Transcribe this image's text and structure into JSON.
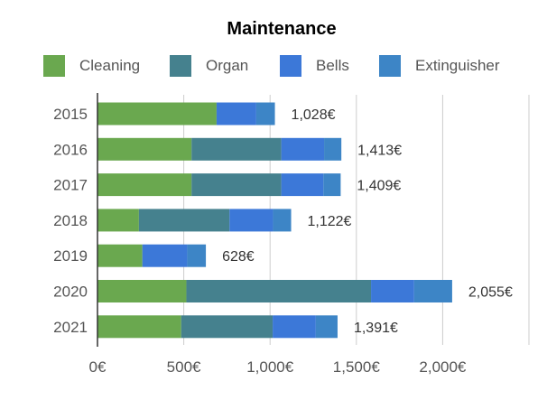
{
  "chart_data": {
    "type": "bar",
    "orientation": "horizontal",
    "stacked": true,
    "title": "Maintenance",
    "categories": [
      "2015",
      "2016",
      "2017",
      "2018",
      "2019",
      "2020",
      "2021"
    ],
    "series": [
      {
        "name": "Cleaning",
        "color": "#6aa84f",
        "values": [
          690,
          545,
          545,
          240,
          260,
          515,
          485
        ]
      },
      {
        "name": "Organ",
        "color": "#45818e",
        "values": [
          0,
          520,
          520,
          525,
          0,
          1070,
          530
        ]
      },
      {
        "name": "Bells",
        "color": "#3c78d8",
        "values": [
          230,
          248,
          244,
          252,
          260,
          250,
          250
        ]
      },
      {
        "name": "Extinguisher",
        "color": "#3d85c6",
        "values": [
          108,
          100,
          100,
          105,
          108,
          220,
          126
        ]
      }
    ],
    "totals": [
      "1,028€",
      "1,413€",
      "1,409€",
      "1,122€",
      "628€",
      "2,055€",
      "1,391€"
    ],
    "xticks": [
      {
        "value": 0,
        "label": "0€"
      },
      {
        "value": 500,
        "label": "500€"
      },
      {
        "value": 1000,
        "label": "1,000€"
      },
      {
        "value": 1500,
        "label": "1,500€"
      },
      {
        "value": 2000,
        "label": "2,000€"
      }
    ],
    "xlim": [
      0,
      2500
    ],
    "legend_position": "top",
    "grid": true
  }
}
